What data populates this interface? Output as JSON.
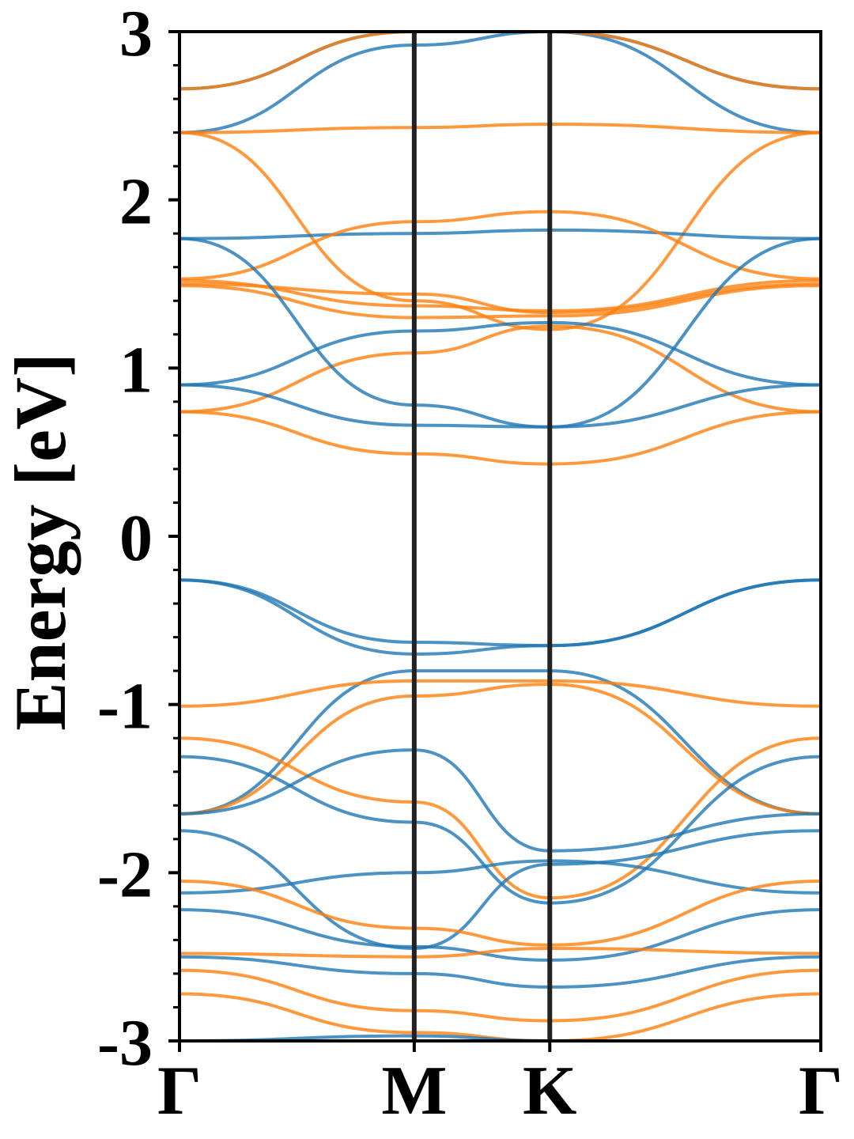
{
  "chart_data": {
    "type": "line",
    "title": "",
    "xlabel": "",
    "ylabel": "Energy [eV]",
    "ylim": [
      -3,
      3
    ],
    "yticks": [
      -3,
      -2,
      -1,
      0,
      1,
      2,
      3
    ],
    "ytick_labels": [
      "-3",
      "-2",
      "-1",
      "0",
      "1",
      "2",
      "3"
    ],
    "k_path": [
      0,
      1,
      1.5774,
      2.732
    ],
    "k_labels": [
      "Γ",
      "M",
      "K",
      "Γ"
    ],
    "grid": false,
    "legend": "none",
    "colors": {
      "blue": "#1f77b4",
      "orange": "#ff7f0e",
      "axes": "#000000",
      "vline": "#222222"
    },
    "series": [
      {
        "color": "blue",
        "values": [
          2.4,
          2.92,
          3.0,
          2.66
        ]
      },
      {
        "color": "blue",
        "values": [
          2.66,
          3.0,
          3.0,
          2.4
        ]
      },
      {
        "color": "orange",
        "values": [
          2.66,
          3.0,
          3.0,
          2.66
        ]
      },
      {
        "color": "orange",
        "values": [
          2.4,
          2.43,
          2.45,
          2.4
        ]
      },
      {
        "color": "orange",
        "values": [
          2.4,
          1.4,
          1.23,
          2.4
        ]
      },
      {
        "color": "blue",
        "values": [
          1.77,
          1.8,
          1.82,
          1.77
        ]
      },
      {
        "color": "orange",
        "values": [
          1.53,
          1.87,
          1.93,
          1.53
        ]
      },
      {
        "color": "orange",
        "values": [
          1.5,
          1.44,
          1.33,
          1.5
        ]
      },
      {
        "color": "orange",
        "values": [
          1.52,
          1.37,
          1.34,
          1.52
        ]
      },
      {
        "color": "orange",
        "values": [
          1.49,
          1.3,
          1.31,
          1.49
        ]
      },
      {
        "color": "orange",
        "values": [
          0.74,
          1.09,
          1.25,
          0.74
        ]
      },
      {
        "color": "orange",
        "values": [
          0.74,
          0.49,
          0.43,
          0.74
        ]
      },
      {
        "color": "blue",
        "values": [
          0.9,
          1.22,
          1.27,
          0.9
        ]
      },
      {
        "color": "blue",
        "values": [
          0.9,
          0.66,
          0.65,
          0.9
        ]
      },
      {
        "color": "blue",
        "values": [
          1.77,
          0.78,
          0.65,
          1.77
        ]
      },
      {
        "color": "blue",
        "values": [
          -0.26,
          -0.63,
          -0.65,
          -0.26
        ]
      },
      {
        "color": "blue",
        "values": [
          -0.26,
          -0.7,
          -0.65,
          -0.26
        ]
      },
      {
        "color": "blue",
        "values": [
          -1.65,
          -0.8,
          -0.8,
          -1.65
        ]
      },
      {
        "color": "orange",
        "values": [
          -1.01,
          -0.86,
          -0.86,
          -1.01
        ]
      },
      {
        "color": "orange",
        "values": [
          -1.65,
          -0.95,
          -0.88,
          -1.65
        ]
      },
      {
        "color": "orange",
        "values": [
          -1.2,
          -1.58,
          -2.15,
          -1.2
        ]
      },
      {
        "color": "blue",
        "values": [
          -1.65,
          -1.27,
          -1.87,
          -1.65
        ]
      },
      {
        "color": "blue",
        "values": [
          -1.31,
          -1.7,
          -2.18,
          -1.31
        ]
      },
      {
        "color": "blue",
        "values": [
          -2.12,
          -2.0,
          -1.93,
          -2.12
        ]
      },
      {
        "color": "blue",
        "values": [
          -1.75,
          -2.45,
          -1.95,
          -1.75
        ]
      },
      {
        "color": "blue",
        "values": [
          -2.22,
          -2.44,
          -2.52,
          -2.22
        ]
      },
      {
        "color": "orange",
        "values": [
          -2.05,
          -2.33,
          -2.43,
          -2.05
        ]
      },
      {
        "color": "orange",
        "values": [
          -2.48,
          -2.5,
          -2.45,
          -2.48
        ]
      },
      {
        "color": "orange",
        "values": [
          -2.58,
          -2.82,
          -2.88,
          -2.58
        ]
      },
      {
        "color": "orange",
        "values": [
          -2.72,
          -2.95,
          -3.0,
          -2.72
        ]
      },
      {
        "color": "blue",
        "values": [
          -2.5,
          -2.6,
          -2.68,
          -2.5
        ]
      },
      {
        "color": "blue",
        "values": [
          -3.0,
          -2.97,
          -3.0,
          -3.0
        ]
      }
    ]
  }
}
